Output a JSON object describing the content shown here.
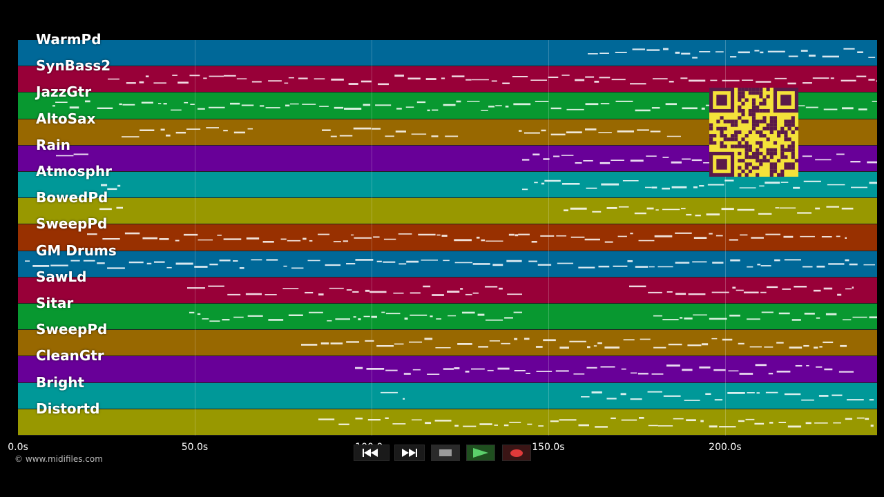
{
  "app": {
    "copyright": "© www.midifiles.com"
  },
  "tracks": [
    {
      "name": "WarmPd",
      "color": "#006898"
    },
    {
      "name": "SynBass2",
      "color": "#980038"
    },
    {
      "name": "JazzGtr",
      "color": "#089830"
    },
    {
      "name": "AltoSax",
      "color": "#986800"
    },
    {
      "name": "Rain",
      "color": "#680098"
    },
    {
      "name": "Atmosphr",
      "color": "#009898"
    },
    {
      "name": "BowedPd",
      "color": "#989800"
    },
    {
      "name": "SweepPd",
      "color": "#983000"
    },
    {
      "name": "GM Drums",
      "color": "#006898"
    },
    {
      "name": "SawLd",
      "color": "#980038"
    },
    {
      "name": "Sitar",
      "color": "#089830"
    },
    {
      "name": "SweepPd",
      "color": "#986800"
    },
    {
      "name": "CleanGtr",
      "color": "#680098"
    },
    {
      "name": "Bright",
      "color": "#009898"
    },
    {
      "name": "Distortd",
      "color": "#989800"
    }
  ],
  "timeline": {
    "ticks": [
      "0.0s",
      "50.0s",
      "100.0s",
      "150.0s",
      "200.0s"
    ],
    "duration_seconds": 243
  },
  "transport": {
    "rewind_icon": "rewind-icon",
    "forward_icon": "fast-forward-icon",
    "stop_icon": "stop-icon",
    "play_icon": "play-icon",
    "record_icon": "record-icon"
  },
  "qr": {
    "color": "#5a1a4a",
    "background": "#f4e23a"
  }
}
